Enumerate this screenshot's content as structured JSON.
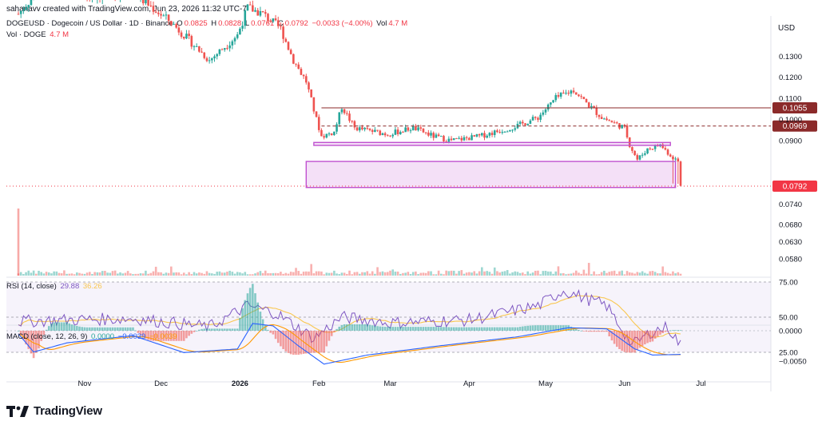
{
  "header": {
    "credit": "sahanavv created with TradingView.com, Jun 23, 2026 11:32 UTC-7",
    "symbol": "DOGEUSD · Dogecoin / US Dollar · 1D · Binance",
    "o_label": "O",
    "o_value": "0.0825",
    "h_label": "H",
    "h_value": "0.0828",
    "l_label": "L",
    "l_value": "0.0761",
    "c_label": "C",
    "c_value": "0.0792",
    "change": "−0.0033 (−4.00%)",
    "vol_label": "Vol",
    "vol_value": "4.7 M",
    "vol_row_label": "Vol · DOGE",
    "vol_row_value": "4.7 M"
  },
  "currency": "USD",
  "brand": {
    "name": "TradingView"
  },
  "rsi_legend": {
    "label": "RSI (14, close)",
    "value": "29.88",
    "ma": "36.26"
  },
  "macd_legend": {
    "label": "MACD (close, 12, 26, 9)",
    "hist": "0.0000",
    "macd": "−0.0039",
    "signal": "−0.0039"
  },
  "colors": {
    "up": "#26a69a",
    "down": "#ef5350",
    "rsi": "#7e57c2",
    "rsi_ma": "#f9c74f",
    "macd": "#2962ff",
    "signal": "#ff9800",
    "zone": "#c052d0",
    "level": "#8b2a2a"
  },
  "chart_data": {
    "type": "candlestick",
    "price_axis": {
      "ticks": [
        0.13,
        0.12,
        0.11,
        0.1,
        0.09,
        0.074,
        0.068,
        0.063,
        0.058
      ],
      "labels": [
        "0.1300",
        "0.1200",
        "0.1100",
        "0.1000",
        "0.0900",
        "0.0740",
        "0.0680",
        "0.0630",
        "0.0580"
      ]
    },
    "price_tags": [
      {
        "value": 0.1055,
        "label": "0.1055",
        "color": "#8b2a2a",
        "style": "solid"
      },
      {
        "value": 0.0969,
        "label": "0.0969",
        "color": "#8b2a2a",
        "style": "dashed"
      },
      {
        "value": 0.0792,
        "label": "0.0792",
        "color": "#f23645",
        "style": "dotted"
      }
    ],
    "zones": [
      {
        "from": "Jan 30",
        "to": "Jun 19",
        "low": 0.0877,
        "high": 0.0891
      },
      {
        "from": "Jan 27",
        "to": "Jun 21",
        "low": 0.0788,
        "high": 0.0801
      }
    ],
    "x_labels": [
      "Nov",
      "Dec",
      "2026",
      "Feb",
      "Mar",
      "Apr",
      "May",
      "Jun",
      "Jul"
    ],
    "anchors": [
      [
        "Oct 6",
        0.15
      ],
      [
        "Oct 20",
        0.17
      ],
      [
        "Nov 1",
        0.158
      ],
      [
        "Nov 20",
        0.16
      ],
      [
        "Dec 5",
        0.146
      ],
      [
        "Dec 20",
        0.128
      ],
      [
        "Dec 31",
        0.14
      ],
      [
        "Jan 4",
        0.153
      ],
      [
        "Jan 10",
        0.15
      ],
      [
        "Jan 17",
        0.143
      ],
      [
        "Jan 22",
        0.128
      ],
      [
        "Jan 27",
        0.118
      ],
      [
        "Jan 31",
        0.1
      ],
      [
        "Feb 2",
        0.092
      ],
      [
        "Feb 7",
        0.094
      ],
      [
        "Feb 10",
        0.106
      ],
      [
        "Feb 15",
        0.096
      ],
      [
        "Feb 28",
        0.093
      ],
      [
        "Mar 10",
        0.096
      ],
      [
        "Mar 18",
        0.092
      ],
      [
        "Mar 25",
        0.09
      ],
      [
        "Apr 5",
        0.092
      ],
      [
        "Apr 20",
        0.097
      ],
      [
        "Apr 28",
        0.101
      ],
      [
        "May 5",
        0.11
      ],
      [
        "May 12",
        0.114
      ],
      [
        "May 16",
        0.109
      ],
      [
        "May 23",
        0.101
      ],
      [
        "Jun 1",
        0.096
      ],
      [
        "Jun 3",
        0.088
      ],
      [
        "Jun 6",
        0.081
      ],
      [
        "Jun 10",
        0.086
      ],
      [
        "Jun 15",
        0.088
      ],
      [
        "Jun 19",
        0.083
      ],
      [
        "Jun 23",
        0.079
      ]
    ],
    "rsi_axis": [
      75.0,
      50.0,
      25.0
    ],
    "rsi_axis_labels": [
      "75.00",
      "50.00",
      "25.00"
    ],
    "rsi_anchors": [
      [
        "Oct 6",
        47
      ],
      [
        "Oct 25",
        48
      ],
      [
        "Nov 20",
        49
      ],
      [
        "Dec 20",
        43
      ],
      [
        "Jan 4",
        58
      ],
      [
        "Jan 15",
        53
      ],
      [
        "Jan 30",
        35
      ],
      [
        "Feb 10",
        50
      ],
      [
        "Mar 1",
        46
      ],
      [
        "Apr 1",
        48
      ],
      [
        "Apr 28",
        58
      ],
      [
        "May 8",
        69
      ],
      [
        "May 25",
        58
      ],
      [
        "Jun 4",
        30
      ],
      [
        "Jun 12",
        40
      ],
      [
        "Jun 18",
        43
      ],
      [
        "Jun 23",
        30
      ]
    ],
    "macd_axis": [
      0.0,
      -0.005
    ],
    "macd_axis_labels": [
      "0.0000",
      "−0.0050"
    ],
    "macd_anchors": [
      [
        "Oct 6",
        -0.0005
      ],
      [
        "Oct 12",
        -0.0035
      ],
      [
        "Oct 25",
        -0.002
      ],
      [
        "Nov 20",
        -0.0008
      ],
      [
        "Dec 10",
        -0.0036
      ],
      [
        "Dec 31",
        -0.003
      ],
      [
        "Jan 6",
        0.0012
      ],
      [
        "Jan 14",
        0.0008
      ],
      [
        "Jan 24",
        -0.0025
      ],
      [
        "Feb 3",
        -0.0055
      ],
      [
        "Feb 20",
        -0.004
      ],
      [
        "Mar 20",
        -0.0025
      ],
      [
        "Apr 20",
        -0.001
      ],
      [
        "May 10",
        0.0005
      ],
      [
        "May 25",
        0.0003
      ],
      [
        "Jun 5",
        -0.003
      ],
      [
        "Jun 12",
        -0.004
      ],
      [
        "Jun 23",
        -0.0039
      ]
    ],
    "volume_spike": [
      "Oct 6",
      6.0
    ]
  }
}
